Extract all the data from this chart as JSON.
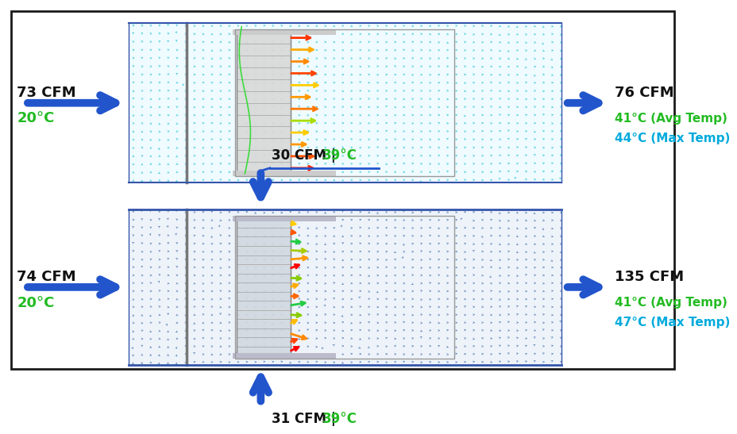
{
  "bg_color": "#ffffff",
  "border_color": "#1a1a1a",
  "arrow_color": "#2255cc",
  "green_color": "#22bb22",
  "cyan_color": "#00aadd",
  "black_color": "#111111",
  "panel1_bg": "#f0fbff",
  "panel2_bg": "#eef3fa",
  "vector_color_p1": "#44ccdd",
  "vector_color_p2": "#6688bb",
  "panel1": {
    "left_cfm": "73 CFM",
    "left_temp": "20°C",
    "right_cfm": "76 CFM",
    "right_avg": "41°C (Avg Temp)",
    "right_max": "44°C (Max Temp)"
  },
  "panel2": {
    "left_cfm": "74 CFM",
    "left_temp": "20°C",
    "right_cfm": "135 CFM",
    "right_avg": "41°C (Avg Temp)",
    "right_max": "47°C (Max Temp)",
    "top_label_cfm": "30 CFM | ",
    "top_label_temp": "39°C",
    "bot_label_cfm": "31 CFM | ",
    "bot_label_temp": "39°C"
  }
}
